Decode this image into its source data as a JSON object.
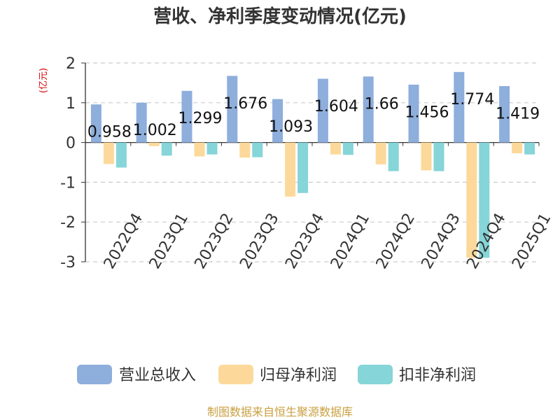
{
  "chart_data": {
    "type": "bar",
    "title": "营收、净利季度变动情况(亿元)",
    "ylabel": "(亿元)",
    "xlabel": "",
    "ylim": [
      -3,
      2
    ],
    "yticks": [
      2,
      1,
      0,
      -1,
      -2,
      -3
    ],
    "categories": [
      "2022Q4",
      "2023Q1",
      "2023Q2",
      "2023Q3",
      "2023Q4",
      "2024Q1",
      "2024Q2",
      "2024Q3",
      "2024Q4",
      "2025Q1"
    ],
    "series": [
      {
        "name": "营业总收入",
        "color": "#8eaedc",
        "values": [
          0.958,
          1.002,
          1.299,
          1.676,
          1.093,
          1.604,
          1.66,
          1.456,
          1.774,
          1.419
        ],
        "labels": [
          "0.958",
          "1.002",
          "1.299",
          "1.676",
          "1.093",
          "1.604",
          "1.66",
          "1.456",
          "1.774",
          "1.419"
        ]
      },
      {
        "name": "归母净利润",
        "color": "#fcd99a",
        "values": [
          -0.54,
          -0.09,
          -0.35,
          -0.38,
          -1.36,
          -0.3,
          -0.55,
          -0.7,
          -2.9,
          -0.27
        ]
      },
      {
        "name": "扣非净利润",
        "color": "#86d5d8",
        "values": [
          -0.63,
          -0.33,
          -0.3,
          -0.37,
          -1.27,
          -0.31,
          -0.72,
          -0.72,
          -2.9,
          -0.3
        ]
      }
    ],
    "grid": true,
    "legend": "bottom"
  },
  "source": "制图数据来自恒生聚源数据库",
  "colors": {
    "axis": "#333333",
    "grid": "#cccccc",
    "ylabel": "#d40000",
    "source": "#c8a040",
    "label": "#111111"
  }
}
